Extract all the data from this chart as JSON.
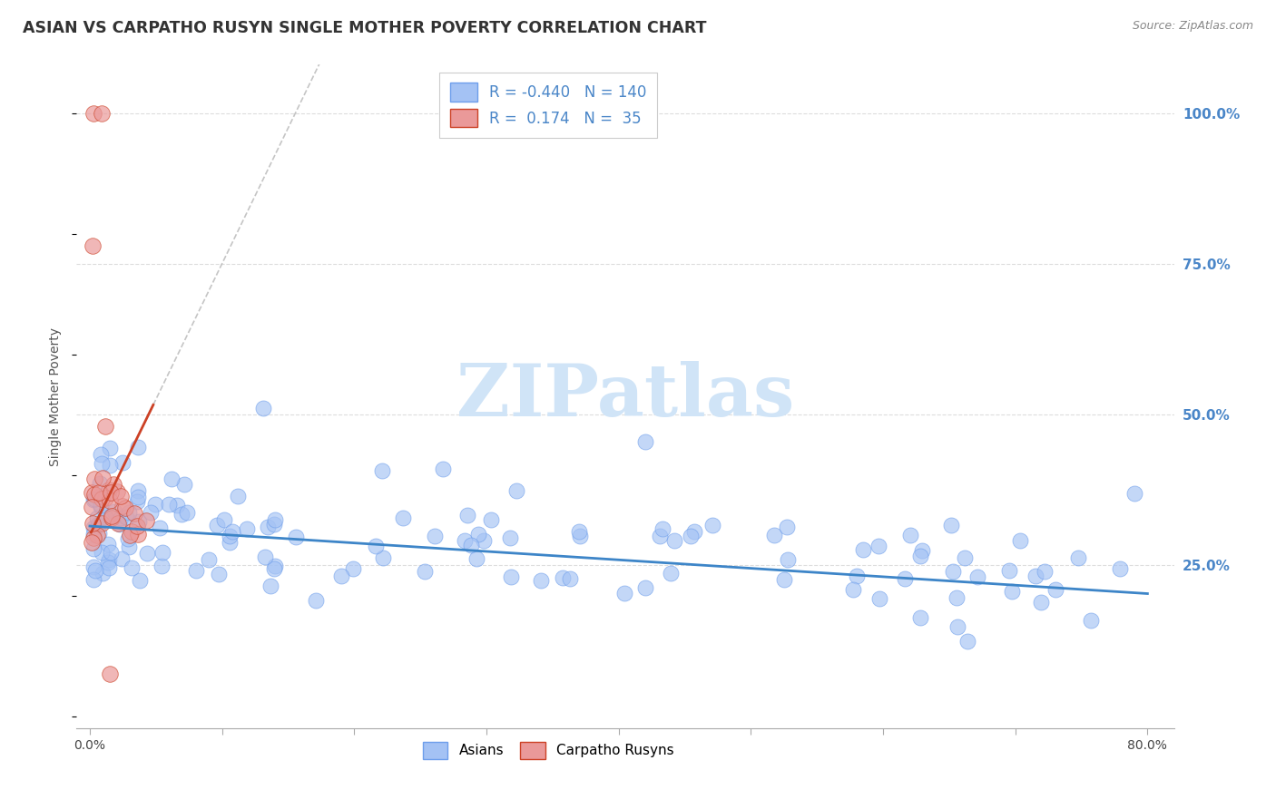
{
  "title": "ASIAN VS CARPATHO RUSYN SINGLE MOTHER POVERTY CORRELATION CHART",
  "source": "Source: ZipAtlas.com",
  "ylabel": "Single Mother Poverty",
  "ytick_labels_right": [
    "25.0%",
    "50.0%",
    "75.0%",
    "100.0%"
  ],
  "blue_color": "#a4c2f4",
  "blue_edge_color": "#6d9eeb",
  "pink_color": "#ea9999",
  "pink_edge_color": "#cc4125",
  "blue_line_color": "#3d85c8",
  "pink_line_color": "#cc4125",
  "gray_dash_color": "#cccccc",
  "right_axis_color": "#4a86c8",
  "grid_color": "#dddddd",
  "title_color": "#333333",
  "watermark_color": "#d0e4f7",
  "legend_text_color": "#4a86c8",
  "seed": 42
}
